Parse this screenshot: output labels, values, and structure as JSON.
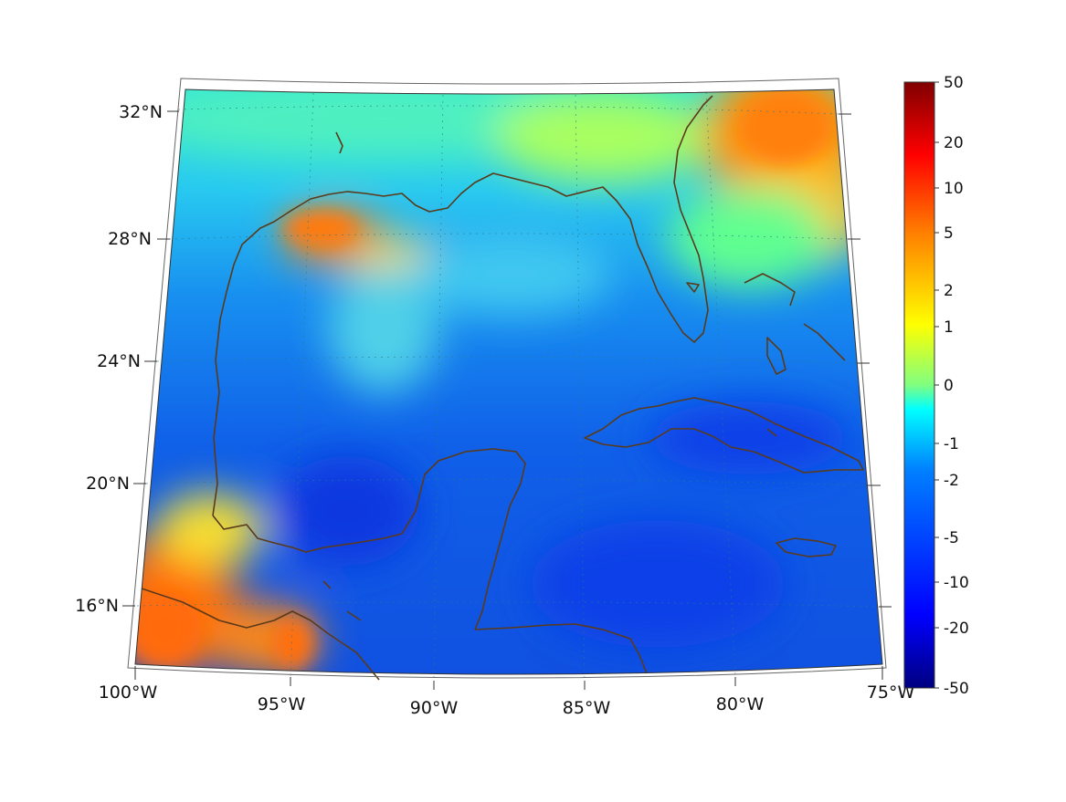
{
  "map": {
    "region": "Gulf of Mexico and Caribbean",
    "projection": "conic",
    "extent": {
      "lon": [
        -100,
        -75
      ],
      "lat": [
        14,
        33
      ]
    },
    "lat_labels": [
      "32°N",
      "28°N",
      "24°N",
      "20°N",
      "16°N"
    ],
    "lat_values": [
      32,
      28,
      24,
      20,
      16
    ],
    "lon_labels": [
      "100°W",
      "95°W",
      "90°W",
      "85°W",
      "80°W",
      "75°W"
    ],
    "lon_values": [
      -100,
      -95,
      -90,
      -85,
      -80,
      -75
    ],
    "coastline_color": "#5a3a1a",
    "grid": "dotted"
  },
  "colorbar": {
    "tick_labels": [
      "50",
      "20",
      "10",
      "5",
      "2",
      "1",
      "0",
      "-1",
      "-2",
      "-5",
      "-10",
      "-20",
      "-50"
    ],
    "colormap": "jet",
    "colors": [
      "#800000",
      "#ff0000",
      "#ff8000",
      "#ffff00",
      "#80ff80",
      "#00ffff",
      "#0080ff",
      "#0000ff",
      "#000080"
    ]
  }
}
